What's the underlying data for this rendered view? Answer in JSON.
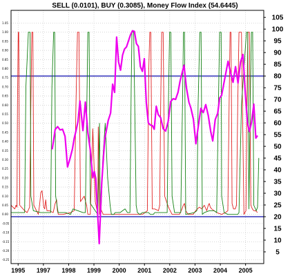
{
  "chart_data": {
    "type": "line",
    "title": "SELL (0.0101), BUY (0.3085), Money Flow Index (54.6445)",
    "x_tick_labels": [
      "1995",
      "1997",
      "1998",
      "1999",
      "2000",
      "2001",
      "2002",
      "2003",
      "2004",
      "2005"
    ],
    "x_range": [
      1995.0,
      2005.2
    ],
    "left_axis": {
      "ylim": [
        -0.27,
        1.12
      ],
      "ticks": [
        "1.05",
        "1.00",
        "0.95",
        "0.90",
        "0.85",
        "0.80",
        "0.75",
        "0.70",
        "0.65",
        "0.60",
        "0.55",
        "0.50",
        "0.45",
        "0.40",
        "0.35",
        "0.30",
        "0.25",
        "0.20",
        "0.15",
        "0.10",
        "0.05",
        "0.00",
        "-0.05",
        "-0.10",
        "-0.15",
        "-0.20",
        "-0.25"
      ]
    },
    "right_axis": {
      "ylim": [
        0,
        108
      ],
      "ticks": [
        "105",
        "100",
        "95",
        "90",
        "85",
        "80",
        "75",
        "70",
        "65",
        "60",
        "55",
        "50",
        "45",
        "40",
        "35",
        "30",
        "25",
        "20",
        "15",
        "10",
        "5"
      ]
    },
    "reference_lines": [
      {
        "axis": "right",
        "value": 80,
        "color": "#1f1fb4"
      },
      {
        "axis": "right",
        "value": 20,
        "color": "#1f1fb4"
      }
    ],
    "colors": {
      "sell": "#e02020",
      "buy": "#108010",
      "mfi": "#ee00ee",
      "grid": "#bfbfbf",
      "reference": "#1f1fb4"
    },
    "series": [
      {
        "key": "sell",
        "axis": "left",
        "x": [
          1995.0,
          1995.15,
          1995.2,
          1995.24,
          1995.26,
          1995.29,
          1995.31,
          1995.35,
          1995.55,
          1995.65,
          1995.75,
          1995.8,
          1995.84,
          1995.88,
          1995.92,
          1996.1,
          1996.15,
          1996.2,
          1996.25,
          1996.32,
          1996.36,
          1996.4,
          1996.45,
          1996.55,
          1996.7,
          1996.78,
          1996.84,
          1996.87,
          1996.91,
          1997.0,
          1997.1,
          1997.4,
          1997.55,
          1997.62,
          1997.68,
          1997.74,
          1997.8,
          1997.95,
          1998.05,
          1998.1,
          1998.2,
          1998.3,
          1998.4,
          1998.5,
          1998.52,
          1998.57,
          1998.62,
          1998.72,
          1998.85,
          1998.95,
          1999.05,
          1999.15,
          1999.25,
          1999.35,
          1999.45,
          1999.6,
          1999.75,
          1999.9,
          2000.0,
          2000.1,
          2000.2,
          2000.3,
          2000.4,
          2000.5,
          2000.56,
          2000.6,
          2000.64,
          2000.7,
          2000.8,
          2000.95,
          2001.0,
          2001.04,
          2001.08,
          2001.14,
          2001.2,
          2001.35,
          2001.5,
          2001.65,
          2001.8,
          2001.9,
          2001.95,
          2002.0,
          2002.05,
          2002.15,
          2002.25,
          2002.35,
          2002.45,
          2002.6,
          2002.7,
          2002.8,
          2002.9,
          2002.96,
          2003.0,
          2003.04,
          2003.1,
          2003.3,
          2003.5,
          2003.65,
          2003.75,
          2003.8,
          2003.84,
          2003.88,
          2003.92,
          2003.98,
          2004.05,
          2004.1,
          2004.15,
          2004.2,
          2004.3,
          2004.4,
          2004.48,
          2004.52,
          2004.56,
          2004.62,
          2004.68,
          2004.74,
          2004.8,
          2004.87,
          2004.95
        ],
        "y": [
          0.05,
          0.03,
          0.05,
          0.04,
          0.6,
          1.0,
          1.0,
          0.05,
          0.02,
          0.01,
          0.04,
          0.6,
          1.0,
          1.0,
          0.05,
          0.0,
          0.05,
          0.12,
          0.13,
          0.04,
          0.03,
          0.08,
          0.02,
          0.02,
          0.01,
          0.06,
          0.08,
          0.02,
          0.0,
          0.0,
          0.0,
          0.01,
          0.02,
          0.6,
          1.0,
          1.0,
          0.07,
          0.1,
          0.05,
          0.0,
          0.0,
          0.47,
          0.07,
          0.0,
          0.48,
          0.0,
          0.03,
          0.0,
          0.0,
          0.0,
          0.0,
          0.0,
          0.0,
          0.0,
          0.0,
          0.0,
          0.0,
          0.0,
          0.0,
          0.0,
          0.0,
          0.0,
          0.01,
          0.02,
          0.8,
          1.0,
          1.0,
          0.03,
          0.03,
          0.02,
          0.05,
          0.6,
          1.0,
          1.0,
          0.1,
          0.04,
          0.0,
          0.0,
          0.0,
          0.03,
          0.05,
          0.06,
          0.02,
          0.0,
          0.0,
          0.0,
          0.02,
          0.04,
          0.03,
          0.05,
          0.02,
          0.05,
          0.06,
          0.04,
          0.03,
          0.01,
          0.0,
          0.01,
          0.02,
          0.6,
          1.0,
          1.0,
          0.06,
          0.03,
          0.03,
          0.05,
          0.6,
          1.0,
          1.0,
          0.0,
          0.02,
          0.6,
          1.0,
          1.0,
          0.05,
          0.03,
          0.02,
          0.02,
          0.01
        ]
      },
      {
        "key": "buy",
        "axis": "left",
        "x": [
          1995.0,
          1995.3,
          1995.55,
          1995.6,
          1995.7,
          1995.77,
          1995.8,
          1995.9,
          1996.2,
          1996.6,
          1996.65,
          1996.72,
          1996.76,
          1996.8,
          1996.9,
          1997.2,
          1997.4,
          1997.5,
          1997.7,
          1997.9,
          1998.0,
          1998.05,
          1998.1,
          1998.15,
          1998.2,
          1998.5,
          1998.57,
          1998.6,
          1998.62,
          1998.64,
          1998.7,
          1998.8,
          1998.9,
          1999.0,
          1999.05,
          1999.1,
          1999.15,
          1999.2,
          1999.3,
          1999.4,
          1999.5,
          1999.6,
          1999.7,
          1999.8,
          1999.85,
          1999.88,
          1999.95,
          2000.05,
          2000.1,
          2000.2,
          2000.3,
          2000.55,
          2000.62,
          2000.66,
          2000.7,
          2000.74,
          2000.8,
          2000.9,
          2001.0,
          2001.3,
          2001.35,
          2001.4,
          2001.45,
          2001.5,
          2001.6,
          2001.75,
          2001.85,
          2001.92,
          2001.96,
          2002.0,
          2002.05,
          2002.4,
          2002.5,
          2002.55,
          2002.62,
          2002.67,
          2002.72,
          2002.8,
          2003.0,
          2003.2,
          2003.3,
          2003.37,
          2003.42,
          2003.48,
          2003.5,
          2003.6,
          2003.75,
          2004.0,
          2004.15,
          2004.2,
          2004.3,
          2004.5,
          2004.55,
          2004.6,
          2004.65,
          2004.7,
          2004.75,
          2004.8,
          2004.9,
          2004.95,
          2005.0
        ],
        "y": [
          0.01,
          0.01,
          0.01,
          0.7,
          1.0,
          1.0,
          0.1,
          0.02,
          0.01,
          0.01,
          0.7,
          1.0,
          1.0,
          0.1,
          0.01,
          0.01,
          0.0,
          0.03,
          0.02,
          0.01,
          0.01,
          0.5,
          1.0,
          1.0,
          0.06,
          0.0,
          0.5,
          0.0,
          0.0,
          0.05,
          0.3,
          0.5,
          0.2,
          0.05,
          0.0,
          0.0,
          0.0,
          0.01,
          0.01,
          0.01,
          0.02,
          0.03,
          0.01,
          0.01,
          0.7,
          1.0,
          1.0,
          0.05,
          0.01,
          0.0,
          0.01,
          0.01,
          0.0,
          0.0,
          0.0,
          0.0,
          0.01,
          0.01,
          0.01,
          0.01,
          0.6,
          1.0,
          1.0,
          0.1,
          0.01,
          0.01,
          0.01,
          0.6,
          1.0,
          1.0,
          0.0,
          0.01,
          0.02,
          0.6,
          1.0,
          1.0,
          0.0,
          0.01,
          0.02,
          0.02,
          0.01,
          0.6,
          1.0,
          1.0,
          0.1,
          0.01,
          0.0,
          0.0,
          0.0,
          0.01,
          0.6,
          1.0,
          1.0,
          0.03,
          0.6,
          1.0,
          1.0,
          0.05,
          0.02,
          0.04,
          0.31
        ]
      },
      {
        "key": "mfi",
        "axis": "right",
        "x": [
          1996.66,
          1996.78,
          1996.88,
          1996.98,
          1997.08,
          1997.18,
          1997.28,
          1997.38,
          1997.48,
          1997.55,
          1997.62,
          1997.7,
          1997.78,
          1997.9,
          1998.0,
          1998.1,
          1998.2,
          1998.3,
          1998.36,
          1998.42,
          1998.48,
          1998.56,
          1998.66,
          1998.78,
          1998.92,
          1999.02,
          1999.1,
          1999.18,
          1999.26,
          1999.34,
          1999.42,
          1999.5,
          1999.58,
          1999.66,
          1999.74,
          1999.82,
          1999.9,
          1999.98,
          2000.06,
          2000.14,
          2000.22,
          2000.3,
          2000.38,
          2000.46,
          2000.54,
          2000.62,
          2000.7,
          2000.78,
          2000.86,
          2000.94,
          2001.04,
          2001.14,
          2001.24,
          2001.34,
          2001.44,
          2001.54,
          2001.64,
          2001.74,
          2001.82,
          2001.9,
          2001.98,
          2002.08,
          2002.18,
          2002.26,
          2002.36,
          2002.46,
          2002.56,
          2002.66,
          2002.76,
          2002.86,
          2002.96,
          2003.06,
          2003.14,
          2003.24,
          2003.34,
          2003.42,
          2003.5,
          2003.58,
          2003.66,
          2003.76,
          2003.86,
          2003.96,
          2004.06,
          2004.16,
          2004.26,
          2004.36,
          2004.46,
          2004.54,
          2004.62,
          2004.7,
          2004.8,
          2004.88,
          2004.95
        ],
        "y": [
          48.7,
          57.2,
          58.4,
          57.0,
          57.3,
          54.3,
          41.2,
          44.8,
          49.0,
          53.5,
          56.5,
          60.5,
          69.3,
          56.7,
          68.9,
          56.0,
          48.3,
          36.6,
          39.3,
          36.3,
          24.2,
          8.5,
          34.2,
          52.9,
          61.0,
          64.2,
          76.5,
          73.0,
          96.6,
          86.0,
          82.5,
          88.9,
          91.5,
          92.4,
          95.0,
          97.6,
          99.3,
          99.0,
          93.8,
          92.6,
          84.0,
          82.0,
          87.4,
          68.6,
          60.0,
          59.1,
          58.9,
          57.3,
          67.1,
          63.6,
          62.2,
          57.5,
          56.5,
          60.5,
          69.0,
          70.3,
          70.0,
          73.0,
          77.7,
          81.2,
          84.6,
          75.0,
          68.8,
          66.3,
          61.6,
          51.1,
          58.8,
          66.2,
          64.4,
          67.8,
          63.2,
          56.3,
          52.3,
          61.4,
          64.1,
          70.6,
          71.8,
          76.4,
          80.7,
          86.3,
          81.5,
          77.3,
          84.0,
          77.0,
          86.0,
          89.2,
          72.0,
          60.2,
          56.3,
          60.0,
          68.0,
          53.5,
          54.6
        ]
      }
    ]
  }
}
